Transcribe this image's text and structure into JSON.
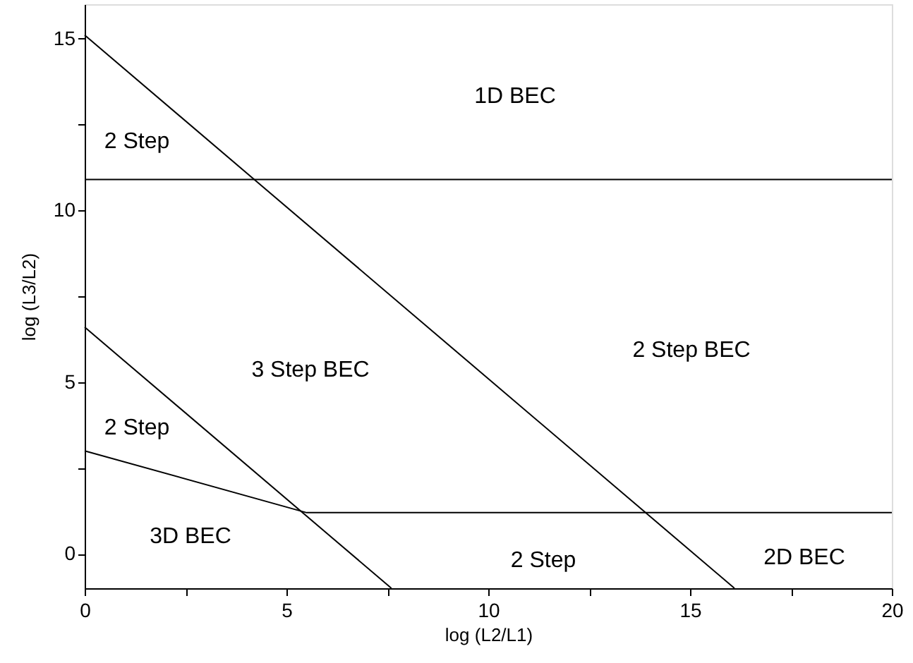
{
  "chart_data": {
    "type": "line",
    "xlabel": "log (L2/L1)",
    "ylabel": "log (L3/L2)",
    "xlim": [
      0,
      20
    ],
    "ylim": [
      -1,
      16
    ],
    "xticks": [
      0,
      {
        "value": 2.5,
        "label": null
      },
      5,
      {
        "value": 7.5,
        "label": null
      },
      10,
      {
        "value": 12.5,
        "label": null
      },
      15,
      {
        "value": 17.5,
        "label": null
      },
      20
    ],
    "yticks": [
      0,
      {
        "value": 2.5,
        "label": null
      },
      5,
      {
        "value": 7.5,
        "label": null
      },
      10,
      {
        "value": 12.5,
        "label": null
      },
      15
    ],
    "grid": false,
    "marker": "none",
    "line_style": "solid",
    "series": [
      {
        "color": "#000000",
        "x": [
          0,
          16.1
        ],
        "values": [
          15.1,
          -1
        ]
      },
      {
        "color": "#000000",
        "x": [
          0,
          20
        ],
        "values": [
          10.9,
          10.9
        ]
      },
      {
        "color": "#000000",
        "x": [
          0,
          7.6
        ],
        "values": [
          6.6,
          -1
        ]
      },
      {
        "color": "#000000",
        "x": [
          0,
          5.5,
          20
        ],
        "values": [
          3.0,
          1.2,
          1.2
        ]
      }
    ],
    "annotations": [
      "1D BEC",
      "2 Step",
      "3 Step BEC",
      "2 Step BEC",
      "2 Step",
      "3D BEC",
      "2 Step",
      "2D BEC"
    ]
  }
}
